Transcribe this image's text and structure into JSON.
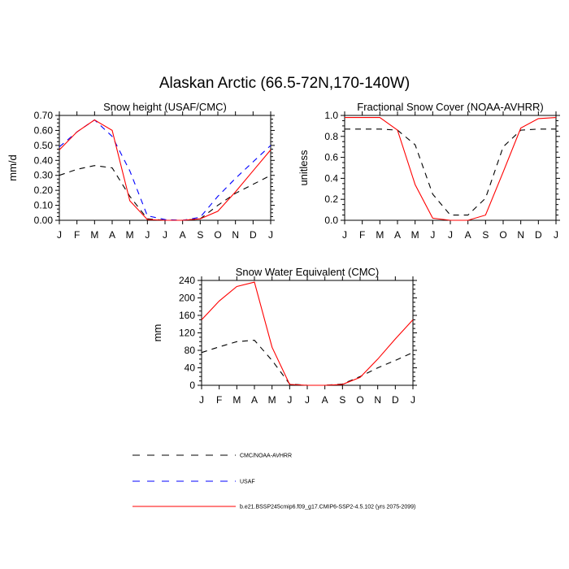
{
  "figure": {
    "title": "Alaskan Arctic (66.5-72N,170-140W)"
  },
  "legend": {
    "entries": [
      {
        "label": "CMC/NOAA-AVHRR",
        "color": "#000000",
        "dash": "dashed"
      },
      {
        "label": "USAF",
        "color": "#0000ff",
        "dash": "dashed"
      },
      {
        "label": "b.e21.BSSP245cmip6.f09_g17.CMIP6-SSP2-4.5.102 (yrs 2075-2099)",
        "color": "#ff0000",
        "dash": "solid"
      }
    ]
  },
  "chart_data": [
    {
      "type": "line",
      "title": "Snow height (USAF/CMC)",
      "xlabel": "",
      "ylabel": "mm/d",
      "categories": [
        "J",
        "F",
        "M",
        "A",
        "M",
        "J",
        "J",
        "A",
        "S",
        "O",
        "N",
        "D",
        "J"
      ],
      "ylim": [
        0,
        0.7
      ],
      "yticks": [
        "0.00",
        "0.10",
        "0.20",
        "0.30",
        "0.40",
        "0.50",
        "0.60",
        "0.70"
      ],
      "series": [
        {
          "name": "CMC/NOAA-AVHRR",
          "color": "#000000",
          "dash": "dashed",
          "values": [
            0.3,
            0.34,
            0.365,
            0.35,
            0.16,
            0.01,
            0.0,
            0.0,
            0.01,
            0.1,
            0.18,
            0.24,
            0.3
          ]
        },
        {
          "name": "USAF",
          "color": "#0000ff",
          "dash": "dashed",
          "values": [
            0.49,
            0.59,
            0.67,
            0.56,
            0.33,
            0.03,
            0.005,
            0.0,
            0.02,
            0.16,
            0.28,
            0.39,
            0.5
          ]
        },
        {
          "name": "b.e21.BSSP245cmip6.f09_g17.CMIP6-SSP2-4.5.102 (yrs 2075-2099)",
          "color": "#ff0000",
          "dash": "solid",
          "values": [
            0.47,
            0.59,
            0.67,
            0.6,
            0.13,
            0.005,
            0.0,
            0.0,
            0.01,
            0.06,
            0.19,
            0.33,
            0.47
          ]
        }
      ]
    },
    {
      "type": "line",
      "title": "Fractional Snow Cover (NOAA-AVHRR)",
      "xlabel": "",
      "ylabel": "unitless",
      "categories": [
        "J",
        "F",
        "M",
        "A",
        "M",
        "J",
        "J",
        "A",
        "S",
        "O",
        "N",
        "D",
        "J"
      ],
      "ylim": [
        0,
        1.0
      ],
      "yticks": [
        "0.0",
        "0.2",
        "0.4",
        "0.6",
        "0.8",
        "1.0"
      ],
      "series": [
        {
          "name": "CMC/NOAA-AVHRR",
          "color": "#000000",
          "dash": "dashed",
          "values": [
            0.87,
            0.87,
            0.87,
            0.86,
            0.72,
            0.25,
            0.05,
            0.05,
            0.21,
            0.7,
            0.86,
            0.87,
            0.87
          ]
        },
        {
          "name": "b.e21.BSSP245cmip6.f09_g17.CMIP6-SSP2-4.5.102 (yrs 2075-2099)",
          "color": "#ff0000",
          "dash": "solid",
          "values": [
            0.98,
            0.98,
            0.98,
            0.86,
            0.34,
            0.02,
            0.0,
            0.0,
            0.05,
            0.46,
            0.88,
            0.97,
            0.98
          ]
        }
      ]
    },
    {
      "type": "line",
      "title": "Snow Water Equivalent (CMC)",
      "xlabel": "",
      "ylabel": "mm",
      "categories": [
        "J",
        "F",
        "M",
        "A",
        "M",
        "J",
        "J",
        "A",
        "S",
        "O",
        "N",
        "D",
        "J"
      ],
      "ylim": [
        0,
        240
      ],
      "yticks": [
        "0",
        "40",
        "80",
        "120",
        "160",
        "200",
        "240"
      ],
      "series": [
        {
          "name": "CMC/NOAA-AVHRR",
          "color": "#000000",
          "dash": "dashed",
          "values": [
            75,
            88,
            100,
            103,
            57,
            3,
            0,
            0,
            3,
            20,
            40,
            57,
            75
          ]
        },
        {
          "name": "b.e21.BSSP245cmip6.f09_g17.CMIP6-SSP2-4.5.102 (yrs 2075-2099)",
          "color": "#ff0000",
          "dash": "solid",
          "values": [
            150,
            193,
            226,
            236,
            87,
            2,
            0,
            0,
            2,
            18,
            60,
            106,
            150
          ]
        }
      ]
    }
  ]
}
